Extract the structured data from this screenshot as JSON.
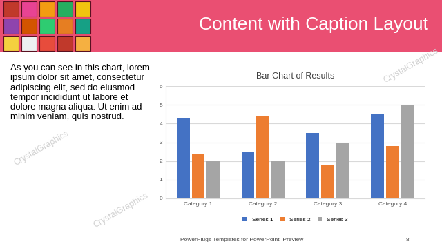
{
  "slide": {
    "title": "Content with Caption Layout",
    "caption_lines": [
      "As you can see in this chart, lorem",
      "ipsum dolor sit amet, consectetur",
      "adipiscing elit, sed do eiusmod",
      "tempor incididunt ut labore et",
      "dolore magna aliqua. Ut enim ad",
      "minim veniam, quis nostrud."
    ],
    "footer": "PowerPlugs Templates for PowerPoint  Preview",
    "page_number": "8",
    "watermark": "CrystalGraphics"
  },
  "chart_data": {
    "type": "bar",
    "title": "Bar Chart of Results",
    "categories": [
      "Category 1",
      "Category 2",
      "Category 3",
      "Category 4"
    ],
    "series": [
      {
        "name": "Series 1",
        "color": "#4472c4",
        "values": [
          4.3,
          2.5,
          3.5,
          4.5
        ]
      },
      {
        "name": "Series 2",
        "color": "#ed7d31",
        "values": [
          2.4,
          4.4,
          1.8,
          2.8
        ]
      },
      {
        "name": "Series 3",
        "color": "#a5a5a5",
        "values": [
          2,
          2,
          3,
          5
        ]
      }
    ],
    "ylim": [
      0,
      6
    ],
    "yticks": [
      0,
      1,
      2,
      3,
      4,
      5,
      6
    ],
    "grid": true,
    "legend": "bottom"
  }
}
